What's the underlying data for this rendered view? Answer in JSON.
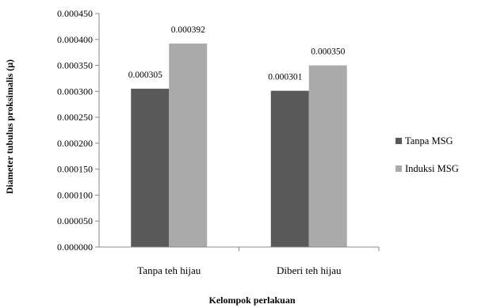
{
  "chart_data": {
    "type": "bar",
    "categories": [
      "Tanpa teh hijau",
      "Diberi teh hijau"
    ],
    "series": [
      {
        "name": "Tanpa MSG",
        "values": [
          0.000305,
          0.000301
        ],
        "labels": [
          "0.000305",
          "0.000301"
        ],
        "color": "#595959"
      },
      {
        "name": "Induksi MSG",
        "values": [
          0.000392,
          0.00035
        ],
        "labels": [
          "0.000392",
          "0.000350"
        ],
        "color": "#aaaaaa"
      }
    ],
    "xlabel": "Kelompok perlakuan",
    "ylabel": "Diameter tubulus proksimalis (μ)",
    "ylim": [
      0,
      0.00045
    ],
    "yticks": [
      "0.000000",
      "0.000050",
      "0.000100",
      "0.000150",
      "0.000200",
      "0.000250",
      "0.000300",
      "0.000350",
      "0.000400",
      "0.000450"
    ],
    "grid": false,
    "legend_position": "right"
  }
}
